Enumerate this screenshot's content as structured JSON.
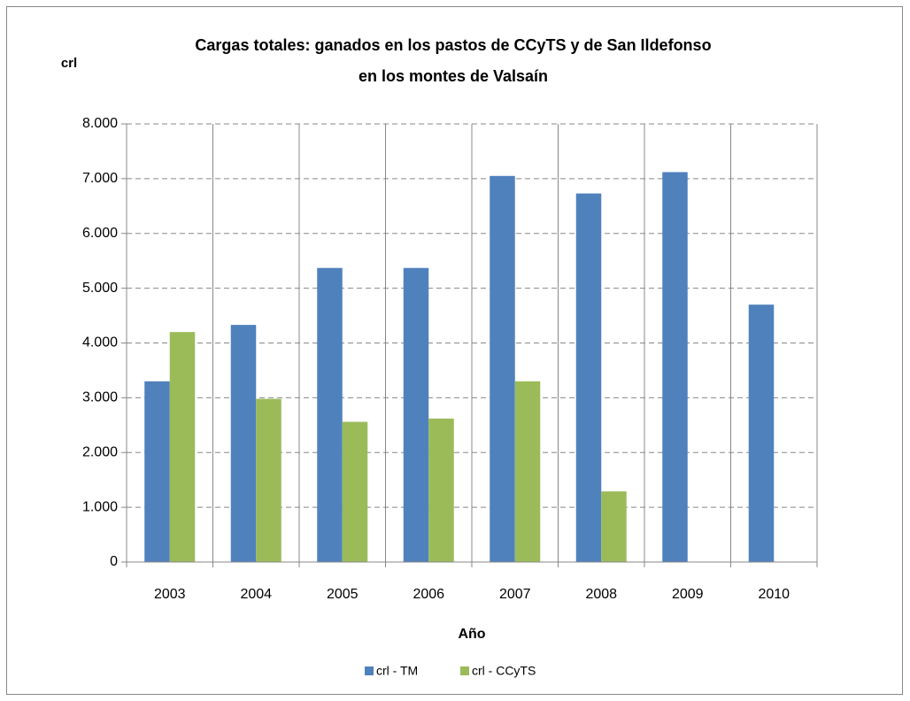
{
  "chart_data": {
    "type": "bar",
    "title": [
      "Cargas totales: ganados  en los pastos de CCyTS y de San Ildefonso",
      "en los montes de Valsaín"
    ],
    "y_label": "crl",
    "x_label": "Año",
    "categories": [
      "2003",
      "2004",
      "2005",
      "2006",
      "2007",
      "2008",
      "2009",
      "2010"
    ],
    "series": [
      {
        "name": "crl - TM",
        "color": "#4f81bd",
        "values": [
          3300,
          4330,
          5370,
          5370,
          7050,
          6730,
          7120,
          4700
        ]
      },
      {
        "name": "crl - CCyTS",
        "color": "#9bbb59",
        "values": [
          4200,
          2980,
          2560,
          2620,
          3300,
          1290,
          null,
          null
        ]
      }
    ],
    "ylim": [
      0,
      8000
    ],
    "yticks": [
      0,
      {
        "value": 1000,
        "label": "1.000"
      },
      {
        "value": 2000,
        "label": "2.000"
      },
      {
        "value": 3000,
        "label": "3.000"
      },
      {
        "value": 4000,
        "label": "4.000"
      },
      {
        "value": 5000,
        "label": "5.000"
      },
      {
        "value": 6000,
        "label": "6.000"
      },
      {
        "value": 7000,
        "label": "7.000"
      },
      {
        "value": 8000,
        "label": "8.000"
      }
    ],
    "grid": true,
    "legend": "bottom"
  }
}
